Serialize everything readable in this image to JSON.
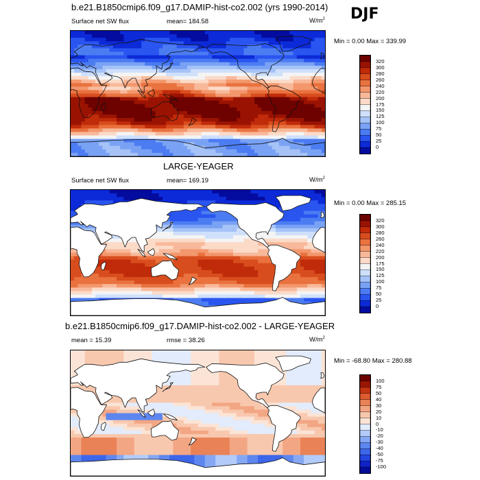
{
  "season": "DJF",
  "panels": [
    {
      "title": "b.e21.B1850cmip6.f09_g17.DAMIP-hist-co2.002 (yrs 1990-2014)",
      "variable": "Surface net SW flux",
      "stat": "mean=  184.58",
      "stat2": "",
      "units": "W/m",
      "units_sup": "2",
      "minmax": "Min =   0.00 Max = 339.99",
      "colorbar_labels": [
        "320",
        "300",
        "280",
        "260",
        "240",
        "220",
        "200",
        "175",
        "150",
        "125",
        "100",
        "75",
        "50",
        "25",
        "0"
      ]
    },
    {
      "title": "LARGE-YEAGER",
      "variable": "Surface net SW flux",
      "stat": "mean=  169.19",
      "stat2": "",
      "units": "W/m",
      "units_sup": "2",
      "minmax": "Min =   0.00 Max = 285.15",
      "colorbar_labels": [
        "320",
        "300",
        "280",
        "260",
        "240",
        "220",
        "200",
        "175",
        "150",
        "125",
        "100",
        "75",
        "50",
        "25",
        "0"
      ]
    },
    {
      "title": "b.e21.B1850cmip6.f09_g17.DAMIP-hist-co2.002 - LARGE-YEAGER",
      "variable": "",
      "stat": "mean =   15.39",
      "stat2": "rmse =   38.26",
      "units": "W/m",
      "units_sup": "2",
      "minmax": "Min = -68.80 Max = 280.88",
      "colorbar_labels": [
        "100",
        "75",
        "50",
        "40",
        "30",
        "20",
        "10",
        "0",
        "-10",
        "-20",
        "-30",
        "-40",
        "-50",
        "-75",
        "-100"
      ]
    }
  ],
  "chart_data": [
    {
      "type": "heatmap",
      "title": "b.e21.B1850cmip6.f09_g17.DAMIP-hist-co2.002 (yrs 1990-2014)",
      "variable": "Surface net SW flux",
      "units": "W/m2",
      "season": "DJF",
      "mean": 184.58,
      "min": 0.0,
      "max": 339.99,
      "levels": [
        0,
        25,
        50,
        75,
        100,
        125,
        150,
        175,
        200,
        220,
        240,
        260,
        280,
        300,
        320
      ],
      "colors": [
        "#040ca0",
        "#0c2ad8",
        "#2a55f0",
        "#4c7cf2",
        "#7aa2f4",
        "#a6c3f7",
        "#cfe0fb",
        "#f4f4f4",
        "#fbdac8",
        "#f8b99a",
        "#f3976d",
        "#e9723f",
        "#d84d1e",
        "#c02b0a",
        "#9a1302",
        "#6e0200"
      ],
      "description_regions": [
        {
          "region": "southern subtropics (15S-40S)",
          "approx_value": 320
        },
        {
          "region": "tropics",
          "approx_value": 250
        },
        {
          "region": "northern midlatitudes",
          "approx_value": 60
        },
        {
          "region": "northern high latitudes",
          "approx_value": 10
        },
        {
          "region": "Antarctica",
          "approx_value": 80
        }
      ]
    },
    {
      "type": "heatmap",
      "title": "LARGE-YEAGER",
      "variable": "Surface net SW flux",
      "units": "W/m2",
      "season": "DJF",
      "mean": 169.19,
      "min": 0.0,
      "max": 285.15,
      "levels": [
        0,
        25,
        50,
        75,
        100,
        125,
        150,
        175,
        200,
        220,
        240,
        260,
        280,
        300,
        320
      ],
      "note": "ocean only; land masked (white)",
      "description_regions": [
        {
          "region": "southern subtropical oceans",
          "approx_value": 280
        },
        {
          "region": "tropical oceans",
          "approx_value": 220
        },
        {
          "region": "northern midlatitude oceans",
          "approx_value": 60
        },
        {
          "region": "Southern Ocean",
          "approx_value": 150
        }
      ]
    },
    {
      "type": "heatmap",
      "title": "b.e21.B1850cmip6.f09_g17.DAMIP-hist-co2.002 - LARGE-YEAGER",
      "units": "W/m2",
      "season": "DJF",
      "mean": 15.39,
      "rmse": 38.26,
      "min": -68.8,
      "max": 280.88,
      "levels": [
        -100,
        -75,
        -50,
        -40,
        -30,
        -20,
        -10,
        0,
        10,
        20,
        30,
        40,
        50,
        75,
        100
      ],
      "colors": [
        "#040c9a",
        "#1022c8",
        "#2345e0",
        "#3d66ea",
        "#5e86ef",
        "#86a8f3",
        "#b3cbf8",
        "#e2ecfc",
        "#fbe4d6",
        "#f8c8ae",
        "#f3a683",
        "#ea8257",
        "#dc5b30",
        "#c33512",
        "#9b1704",
        "#6e0200"
      ],
      "description_regions": [
        {
          "region": "Southern Ocean 40S-60S",
          "approx_value": 30
        },
        {
          "region": "tropical oceans",
          "approx_value": 10
        },
        {
          "region": "Indian Ocean equatorial band",
          "approx_value": -40
        },
        {
          "region": "Antarctic coast",
          "approx_value": -40
        },
        {
          "region": "coastal land margins",
          "approx_value": 100
        }
      ]
    }
  ]
}
